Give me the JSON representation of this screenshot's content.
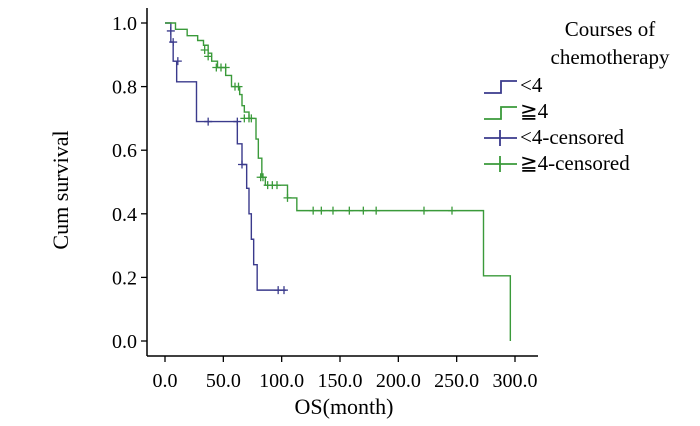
{
  "chart_data": {
    "type": "line",
    "subtype": "kaplan-meier",
    "xlabel": "OS(month)",
    "ylabel": "Cum survival",
    "xlim": [
      0,
      300
    ],
    "ylim": [
      0,
      1.0
    ],
    "x_ticks": [
      "0.0",
      "50.0",
      "100.0",
      "150.0",
      "200.0",
      "250.0",
      "300.0"
    ],
    "y_ticks": [
      "0.0",
      "0.2",
      "0.4",
      "0.6",
      "0.8",
      "1.0"
    ],
    "grid": false,
    "legend": {
      "title": [
        "Courses of",
        "chemotherapy"
      ],
      "placement": "top-right",
      "entries": [
        "<4",
        "≧4",
        "<4-censored",
        "≧4-censored"
      ]
    },
    "series": [
      {
        "name": "<4",
        "color": "#3a3a8c",
        "steps": [
          [
            0,
            1.0
          ],
          [
            5,
            0.94
          ],
          [
            7,
            0.88
          ],
          [
            10,
            0.815
          ],
          [
            27,
            0.69
          ],
          [
            62,
            0.62
          ],
          [
            66,
            0.555
          ],
          [
            70,
            0.48
          ],
          [
            72,
            0.4
          ],
          [
            74,
            0.32
          ],
          [
            76,
            0.24
          ],
          [
            79,
            0.16
          ],
          [
            104,
            0.16
          ]
        ],
        "censored": [
          [
            5,
            0.975
          ],
          [
            7,
            0.94
          ],
          [
            11,
            0.88
          ],
          [
            37,
            0.69
          ],
          [
            62,
            0.69
          ],
          [
            66,
            0.555
          ],
          [
            97,
            0.16
          ],
          [
            102,
            0.16
          ]
        ]
      },
      {
        "name": "≧4",
        "color": "#3a9a3a",
        "steps": [
          [
            0,
            1.0
          ],
          [
            9,
            0.98
          ],
          [
            19,
            0.96
          ],
          [
            28,
            0.945
          ],
          [
            33,
            0.93
          ],
          [
            37,
            0.905
          ],
          [
            40,
            0.88
          ],
          [
            45,
            0.86
          ],
          [
            52,
            0.835
          ],
          [
            57,
            0.8
          ],
          [
            64,
            0.775
          ],
          [
            66,
            0.74
          ],
          [
            68,
            0.72
          ],
          [
            72,
            0.7
          ],
          [
            78,
            0.635
          ],
          [
            80,
            0.575
          ],
          [
            83,
            0.515
          ],
          [
            86,
            0.49
          ],
          [
            105,
            0.45
          ],
          [
            113,
            0.41
          ],
          [
            273,
            0.41
          ],
          [
            273,
            0.205
          ],
          [
            296,
            0.205
          ],
          [
            296,
            0.0
          ]
        ],
        "censored": [
          [
            34,
            0.915
          ],
          [
            37,
            0.895
          ],
          [
            44,
            0.86
          ],
          [
            48,
            0.86
          ],
          [
            52,
            0.86
          ],
          [
            60,
            0.8
          ],
          [
            63,
            0.8
          ],
          [
            68,
            0.7
          ],
          [
            72,
            0.7
          ],
          [
            74,
            0.7
          ],
          [
            82,
            0.515
          ],
          [
            84,
            0.515
          ],
          [
            88,
            0.49
          ],
          [
            92,
            0.49
          ],
          [
            96,
            0.49
          ],
          [
            105,
            0.45
          ],
          [
            127,
            0.41
          ],
          [
            134,
            0.41
          ],
          [
            144,
            0.41
          ],
          [
            158,
            0.41
          ],
          [
            170,
            0.41
          ],
          [
            181,
            0.41
          ],
          [
            222,
            0.41
          ],
          [
            246,
            0.41
          ]
        ]
      }
    ]
  }
}
